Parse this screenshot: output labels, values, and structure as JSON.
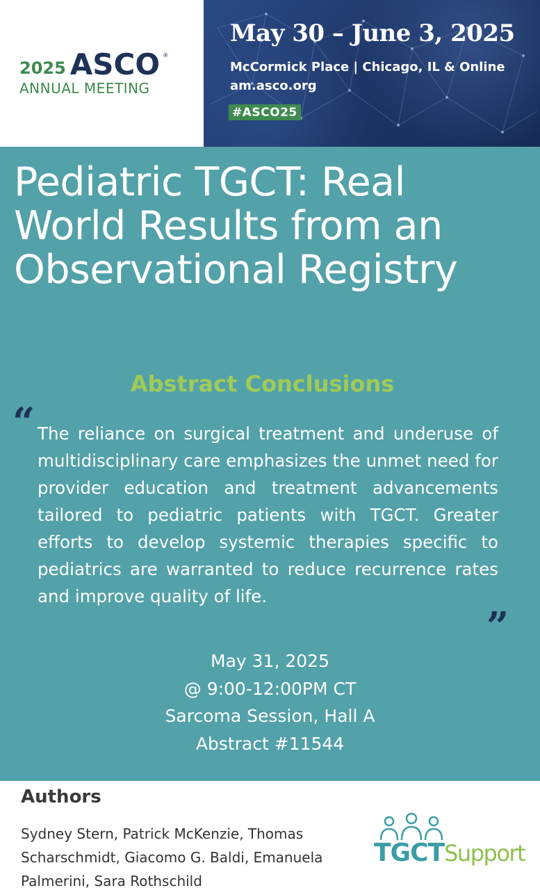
{
  "header": {
    "logo": {
      "year": "2025",
      "name": "ASCO",
      "registered": "®",
      "subtitle": "ANNUAL MEETING"
    },
    "banner": {
      "dates": "May 30 – June 3, 2025",
      "location": "McCormick Place | Chicago, IL & Online",
      "url": "am.asco.org",
      "hashtag": "#ASCO25"
    }
  },
  "main": {
    "title": "Pediatric TGCT: Real World Results from an Observational Registry",
    "subheading": "Abstract Conclusions",
    "quote_open": "“",
    "quote_close": "”",
    "quote": "The reliance on surgical treatment and underuse of multidisciplinary care emphasizes the unmet need for provider education and treatment advancements tailored to pediatric patients with TGCT. Greater efforts to develop systemic therapies specific to pediatrics are warranted to reduce recurrence rates and improve quality of life.",
    "session": {
      "date": "May 31, 2025",
      "time": "@ 9:00-12:00PM CT",
      "room": "Sarcoma Session, Hall A",
      "abstract": "Abstract #11544"
    }
  },
  "authors": {
    "heading": "Authors",
    "names": "Sydney Stern, Patrick McKenzie, Thomas Scharschmidt, Giacomo G. Baldi, Emanuela Palmerini, Sara Rothschild"
  },
  "sponsor_logo": {
    "bold": "TGCT",
    "light": "Support"
  },
  "colors": {
    "teal": "#53a1a9",
    "navy": "#1e3157",
    "green": "#3e8a4f",
    "lime": "#9fcb58"
  }
}
